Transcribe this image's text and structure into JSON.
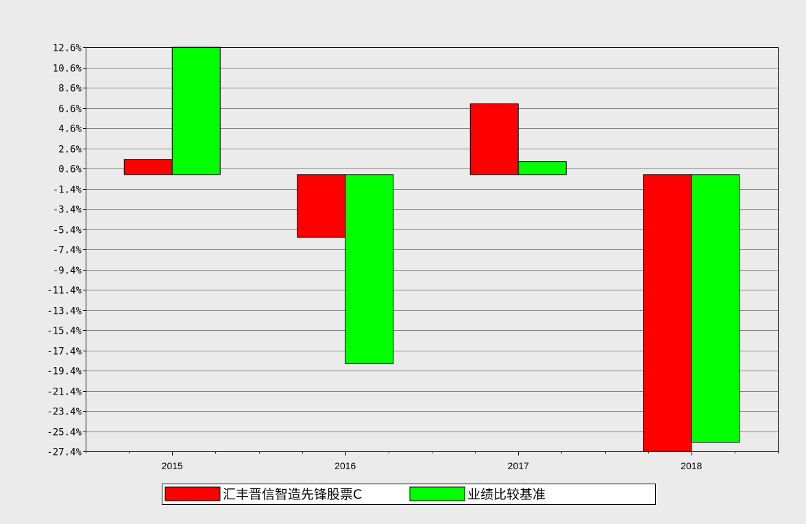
{
  "chart_data": {
    "type": "bar",
    "categories": [
      "2015",
      "2016",
      "2017",
      "2018"
    ],
    "series": [
      {
        "name": "汇丰晋信智造先锋股票C",
        "color": "#ff0000",
        "values": [
          1.5,
          -6.2,
          7.0,
          -27.4
        ]
      },
      {
        "name": "业绩比较基准",
        "color": "#00ff00",
        "values": [
          12.6,
          -18.7,
          1.3,
          -26.5
        ]
      }
    ],
    "ylim": [
      -27.4,
      12.6
    ],
    "yticks": [
      "12.6%",
      "10.6%",
      "8.6%",
      "6.6%",
      "4.6%",
      "2.6%",
      "0.6%",
      "-1.4%",
      "-3.4%",
      "-5.4%",
      "-7.4%",
      "-9.4%",
      "-11.4%",
      "-13.4%",
      "-15.4%",
      "-17.4%",
      "-19.4%",
      "-21.4%",
      "-23.4%",
      "-25.4%",
      "-27.4%"
    ],
    "grid": true,
    "legend_position": "bottom"
  }
}
